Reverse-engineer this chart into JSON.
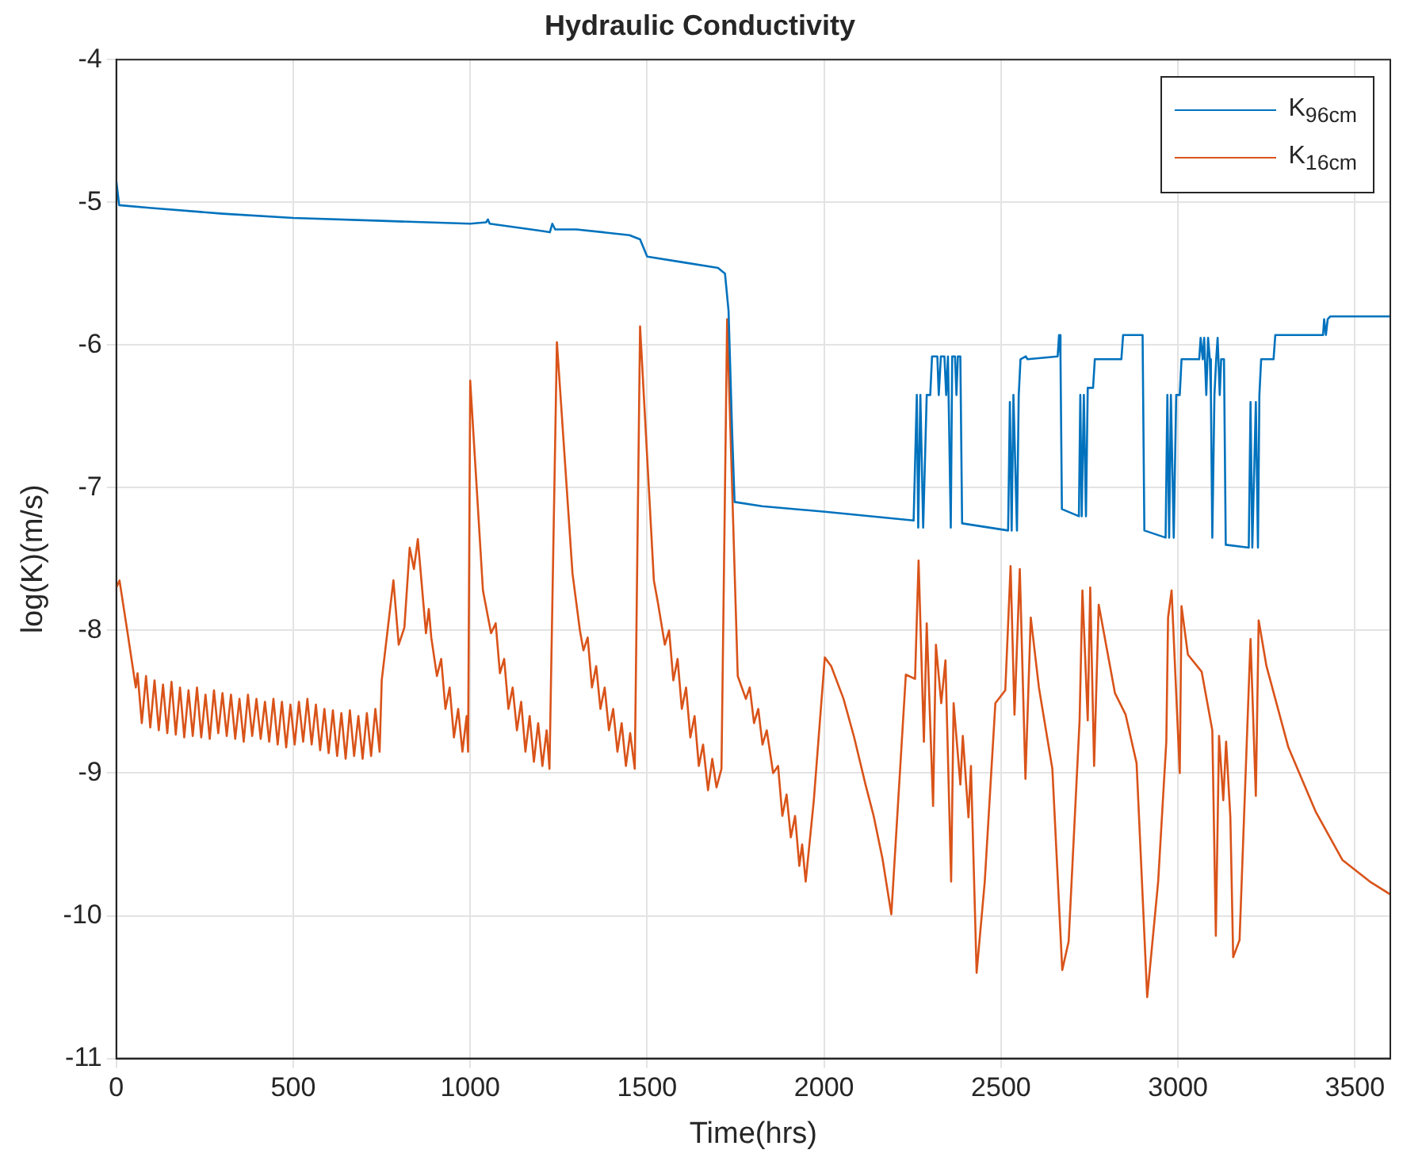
{
  "chart_data": {
    "type": "line",
    "title": "Hydraulic Conductivity",
    "xlabel": "Time(hrs)",
    "ylabel": "log(K)(m/s)",
    "xlim": [
      0,
      3600
    ],
    "xticks": [
      0,
      500,
      1000,
      1500,
      2000,
      2500,
      3000,
      3500
    ],
    "ylim": [
      -11,
      -4
    ],
    "yticks": [
      -11,
      -10,
      -9,
      -8,
      -7,
      -6,
      -5,
      -4
    ],
    "grid": true,
    "legend": "top right",
    "series": [
      {
        "name": "K$_{96cm}$",
        "color": "#0072bd",
        "x": [
          0,
          8,
          100,
          300,
          500,
          750,
          1000,
          1045,
          1050,
          1055,
          1200,
          1225,
          1232,
          1240,
          1300,
          1450,
          1480,
          1500,
          1600,
          1700,
          1720,
          1730,
          1740,
          1747,
          1825,
          2009,
          2253,
          2262,
          2266,
          2272,
          2280,
          2290,
          2300,
          2305,
          2320,
          2324,
          2330,
          2340,
          2345,
          2350,
          2358,
          2362,
          2370,
          2374,
          2378,
          2385,
          2390,
          2520,
          2525,
          2530,
          2535,
          2545,
          2550,
          2555,
          2570,
          2575,
          2660,
          2664,
          2668,
          2672,
          2720,
          2724,
          2728,
          2734,
          2740,
          2745,
          2760,
          2765,
          2840,
          2845,
          2900,
          2905,
          2965,
          2970,
          2975,
          2980,
          2988,
          2995,
          3005,
          3010,
          3060,
          3064,
          3070,
          3074,
          3080,
          3085,
          3090,
          3093,
          3097,
          3103,
          3108,
          3112,
          3118,
          3122,
          3130,
          3135,
          3200,
          3205,
          3210,
          3220,
          3226,
          3230,
          3235,
          3270,
          3275,
          3410,
          3413,
          3418,
          3423,
          3430,
          3600
        ],
        "values": [
          -4.85,
          -5.02,
          -5.04,
          -5.08,
          -5.11,
          -5.13,
          -5.15,
          -5.14,
          -5.12,
          -5.15,
          -5.2,
          -5.21,
          -5.15,
          -5.19,
          -5.19,
          -5.23,
          -5.26,
          -5.38,
          -5.42,
          -5.46,
          -5.5,
          -5.76,
          -6.6,
          -7.1,
          -7.13,
          -7.17,
          -7.23,
          -6.35,
          -7.28,
          -6.35,
          -7.28,
          -6.35,
          -6.35,
          -6.08,
          -6.08,
          -6.35,
          -6.08,
          -6.08,
          -6.35,
          -6.08,
          -7.28,
          -6.08,
          -6.08,
          -6.35,
          -6.08,
          -6.08,
          -7.25,
          -7.3,
          -6.4,
          -7.3,
          -6.35,
          -7.3,
          -6.35,
          -6.1,
          -6.08,
          -6.1,
          -6.08,
          -5.93,
          -6.08,
          -7.15,
          -7.2,
          -6.35,
          -7.2,
          -6.35,
          -7.2,
          -6.3,
          -6.3,
          -6.1,
          -6.1,
          -5.93,
          -5.93,
          -7.3,
          -7.35,
          -6.35,
          -7.35,
          -6.35,
          -7.35,
          -6.35,
          -6.35,
          -6.1,
          -6.1,
          -5.95,
          -6.1,
          -5.95,
          -6.35,
          -5.95,
          -6.1,
          -6.35,
          -7.35,
          -6.35,
          -6.1,
          -5.95,
          -6.35,
          -6.1,
          -6.1,
          -7.4,
          -7.42,
          -6.4,
          -7.42,
          -6.4,
          -7.42,
          -6.35,
          -6.1,
          -6.1,
          -5.93,
          -5.93,
          -5.82,
          -5.93,
          -5.82,
          -5.8,
          -5.8
        ]
      },
      {
        "name": "K$_{16cm}$",
        "color": "#d95319",
        "x": [
          0,
          9,
          32,
          55,
          60,
          72,
          84,
          96,
          108,
          120,
          132,
          144,
          156,
          168,
          180,
          192,
          204,
          216,
          228,
          240,
          252,
          264,
          276,
          288,
          300,
          312,
          324,
          336,
          348,
          360,
          372,
          384,
          396,
          408,
          420,
          432,
          444,
          456,
          468,
          480,
          492,
          504,
          516,
          528,
          540,
          552,
          564,
          576,
          588,
          600,
          612,
          624,
          636,
          648,
          660,
          672,
          684,
          696,
          708,
          720,
          732,
          744,
          750,
          783,
          798,
          814,
          829,
          841,
          852,
          875,
          883,
          890,
          906,
          918,
          930,
          942,
          954,
          966,
          978,
          990,
          994,
          1000,
          1036,
          1059,
          1072,
          1084,
          1096,
          1108,
          1120,
          1132,
          1144,
          1156,
          1168,
          1180,
          1192,
          1204,
          1216,
          1224,
          1245,
          1289,
          1310,
          1320,
          1332,
          1344,
          1356,
          1368,
          1380,
          1392,
          1404,
          1416,
          1428,
          1440,
          1452,
          1465,
          1480,
          1519,
          1530,
          1550,
          1562,
          1574,
          1586,
          1598,
          1610,
          1622,
          1634,
          1646,
          1658,
          1672,
          1684,
          1696,
          1710,
          1726,
          1756,
          1779,
          1790,
          1802,
          1814,
          1826,
          1838,
          1856,
          1870,
          1882,
          1894,
          1906,
          1918,
          1930,
          1938,
          1948,
          1971,
          2002,
          2020,
          2055,
          2085,
          2117,
          2140,
          2165,
          2190,
          2231,
          2257,
          2267,
          2282,
          2290,
          2308,
          2316,
          2331,
          2343,
          2359,
          2366,
          2385,
          2392,
          2408,
          2415,
          2431,
          2454,
          2484,
          2512,
          2527,
          2538,
          2553,
          2569,
          2584,
          2607,
          2645,
          2673,
          2691,
          2722,
          2730,
          2745,
          2752,
          2763,
          2776,
          2822,
          2852,
          2883,
          2913,
          2944,
          2967,
          2972,
          2982,
          3005,
          3010,
          3028,
          3067,
          3097,
          3107,
          3116,
          3128,
          3136,
          3148,
          3156,
          3174,
          3205,
          3220,
          3228,
          3250,
          3312,
          3389,
          3465,
          3542,
          3600
        ],
        "values": [
          -7.7,
          -7.65,
          -8.02,
          -8.4,
          -8.3,
          -8.65,
          -8.32,
          -8.68,
          -8.35,
          -8.7,
          -8.38,
          -8.72,
          -8.36,
          -8.73,
          -8.4,
          -8.75,
          -8.42,
          -8.74,
          -8.4,
          -8.75,
          -8.45,
          -8.76,
          -8.42,
          -8.72,
          -8.44,
          -8.74,
          -8.45,
          -8.76,
          -8.48,
          -8.78,
          -8.45,
          -8.74,
          -8.48,
          -8.76,
          -8.5,
          -8.78,
          -8.48,
          -8.8,
          -8.5,
          -8.82,
          -8.52,
          -8.8,
          -8.5,
          -8.78,
          -8.48,
          -8.8,
          -8.52,
          -8.84,
          -8.55,
          -8.86,
          -8.56,
          -8.88,
          -8.58,
          -8.9,
          -8.56,
          -8.88,
          -8.6,
          -8.9,
          -8.58,
          -8.88,
          -8.55,
          -8.85,
          -8.35,
          -7.65,
          -8.1,
          -7.98,
          -7.42,
          -7.57,
          -7.36,
          -8.02,
          -7.85,
          -8.05,
          -8.32,
          -8.2,
          -8.55,
          -8.4,
          -8.75,
          -8.55,
          -8.85,
          -8.6,
          -8.85,
          -6.25,
          -7.72,
          -8.02,
          -7.95,
          -8.3,
          -8.2,
          -8.55,
          -8.4,
          -8.7,
          -8.5,
          -8.85,
          -8.6,
          -8.92,
          -8.65,
          -8.95,
          -8.7,
          -8.97,
          -5.98,
          -7.6,
          -8.0,
          -8.14,
          -8.05,
          -8.4,
          -8.25,
          -8.55,
          -8.4,
          -8.7,
          -8.55,
          -8.85,
          -8.65,
          -8.95,
          -8.72,
          -8.97,
          -5.87,
          -7.65,
          -7.8,
          -8.1,
          -8.0,
          -8.35,
          -8.2,
          -8.55,
          -8.4,
          -8.75,
          -8.6,
          -8.95,
          -8.8,
          -9.12,
          -8.9,
          -9.1,
          -8.97,
          -5.82,
          -8.32,
          -8.48,
          -8.4,
          -8.65,
          -8.55,
          -8.8,
          -8.7,
          -9.0,
          -8.95,
          -9.3,
          -9.15,
          -9.45,
          -9.3,
          -9.65,
          -9.5,
          -9.76,
          -9.19,
          -8.19,
          -8.25,
          -8.48,
          -8.75,
          -9.08,
          -9.3,
          -9.6,
          -9.99,
          -8.31,
          -8.34,
          -7.51,
          -8.78,
          -7.95,
          -9.23,
          -8.1,
          -8.51,
          -8.21,
          -9.76,
          -8.51,
          -9.08,
          -8.74,
          -9.31,
          -8.95,
          -10.4,
          -9.76,
          -8.51,
          -8.42,
          -7.55,
          -8.59,
          -7.57,
          -9.04,
          -7.91,
          -8.4,
          -8.97,
          -10.38,
          -10.18,
          -8.63,
          -7.72,
          -8.63,
          -7.7,
          -8.95,
          -7.82,
          -8.44,
          -8.59,
          -8.93,
          -10.57,
          -9.76,
          -8.78,
          -7.91,
          -7.72,
          -9.0,
          -7.83,
          -8.17,
          -8.29,
          -8.7,
          -10.14,
          -8.74,
          -9.19,
          -8.78,
          -9.31,
          -10.29,
          -10.17,
          -8.06,
          -9.16,
          -7.93,
          -8.25,
          -8.82,
          -9.27,
          -9.61,
          -9.76,
          -9.85
        ]
      }
    ]
  }
}
